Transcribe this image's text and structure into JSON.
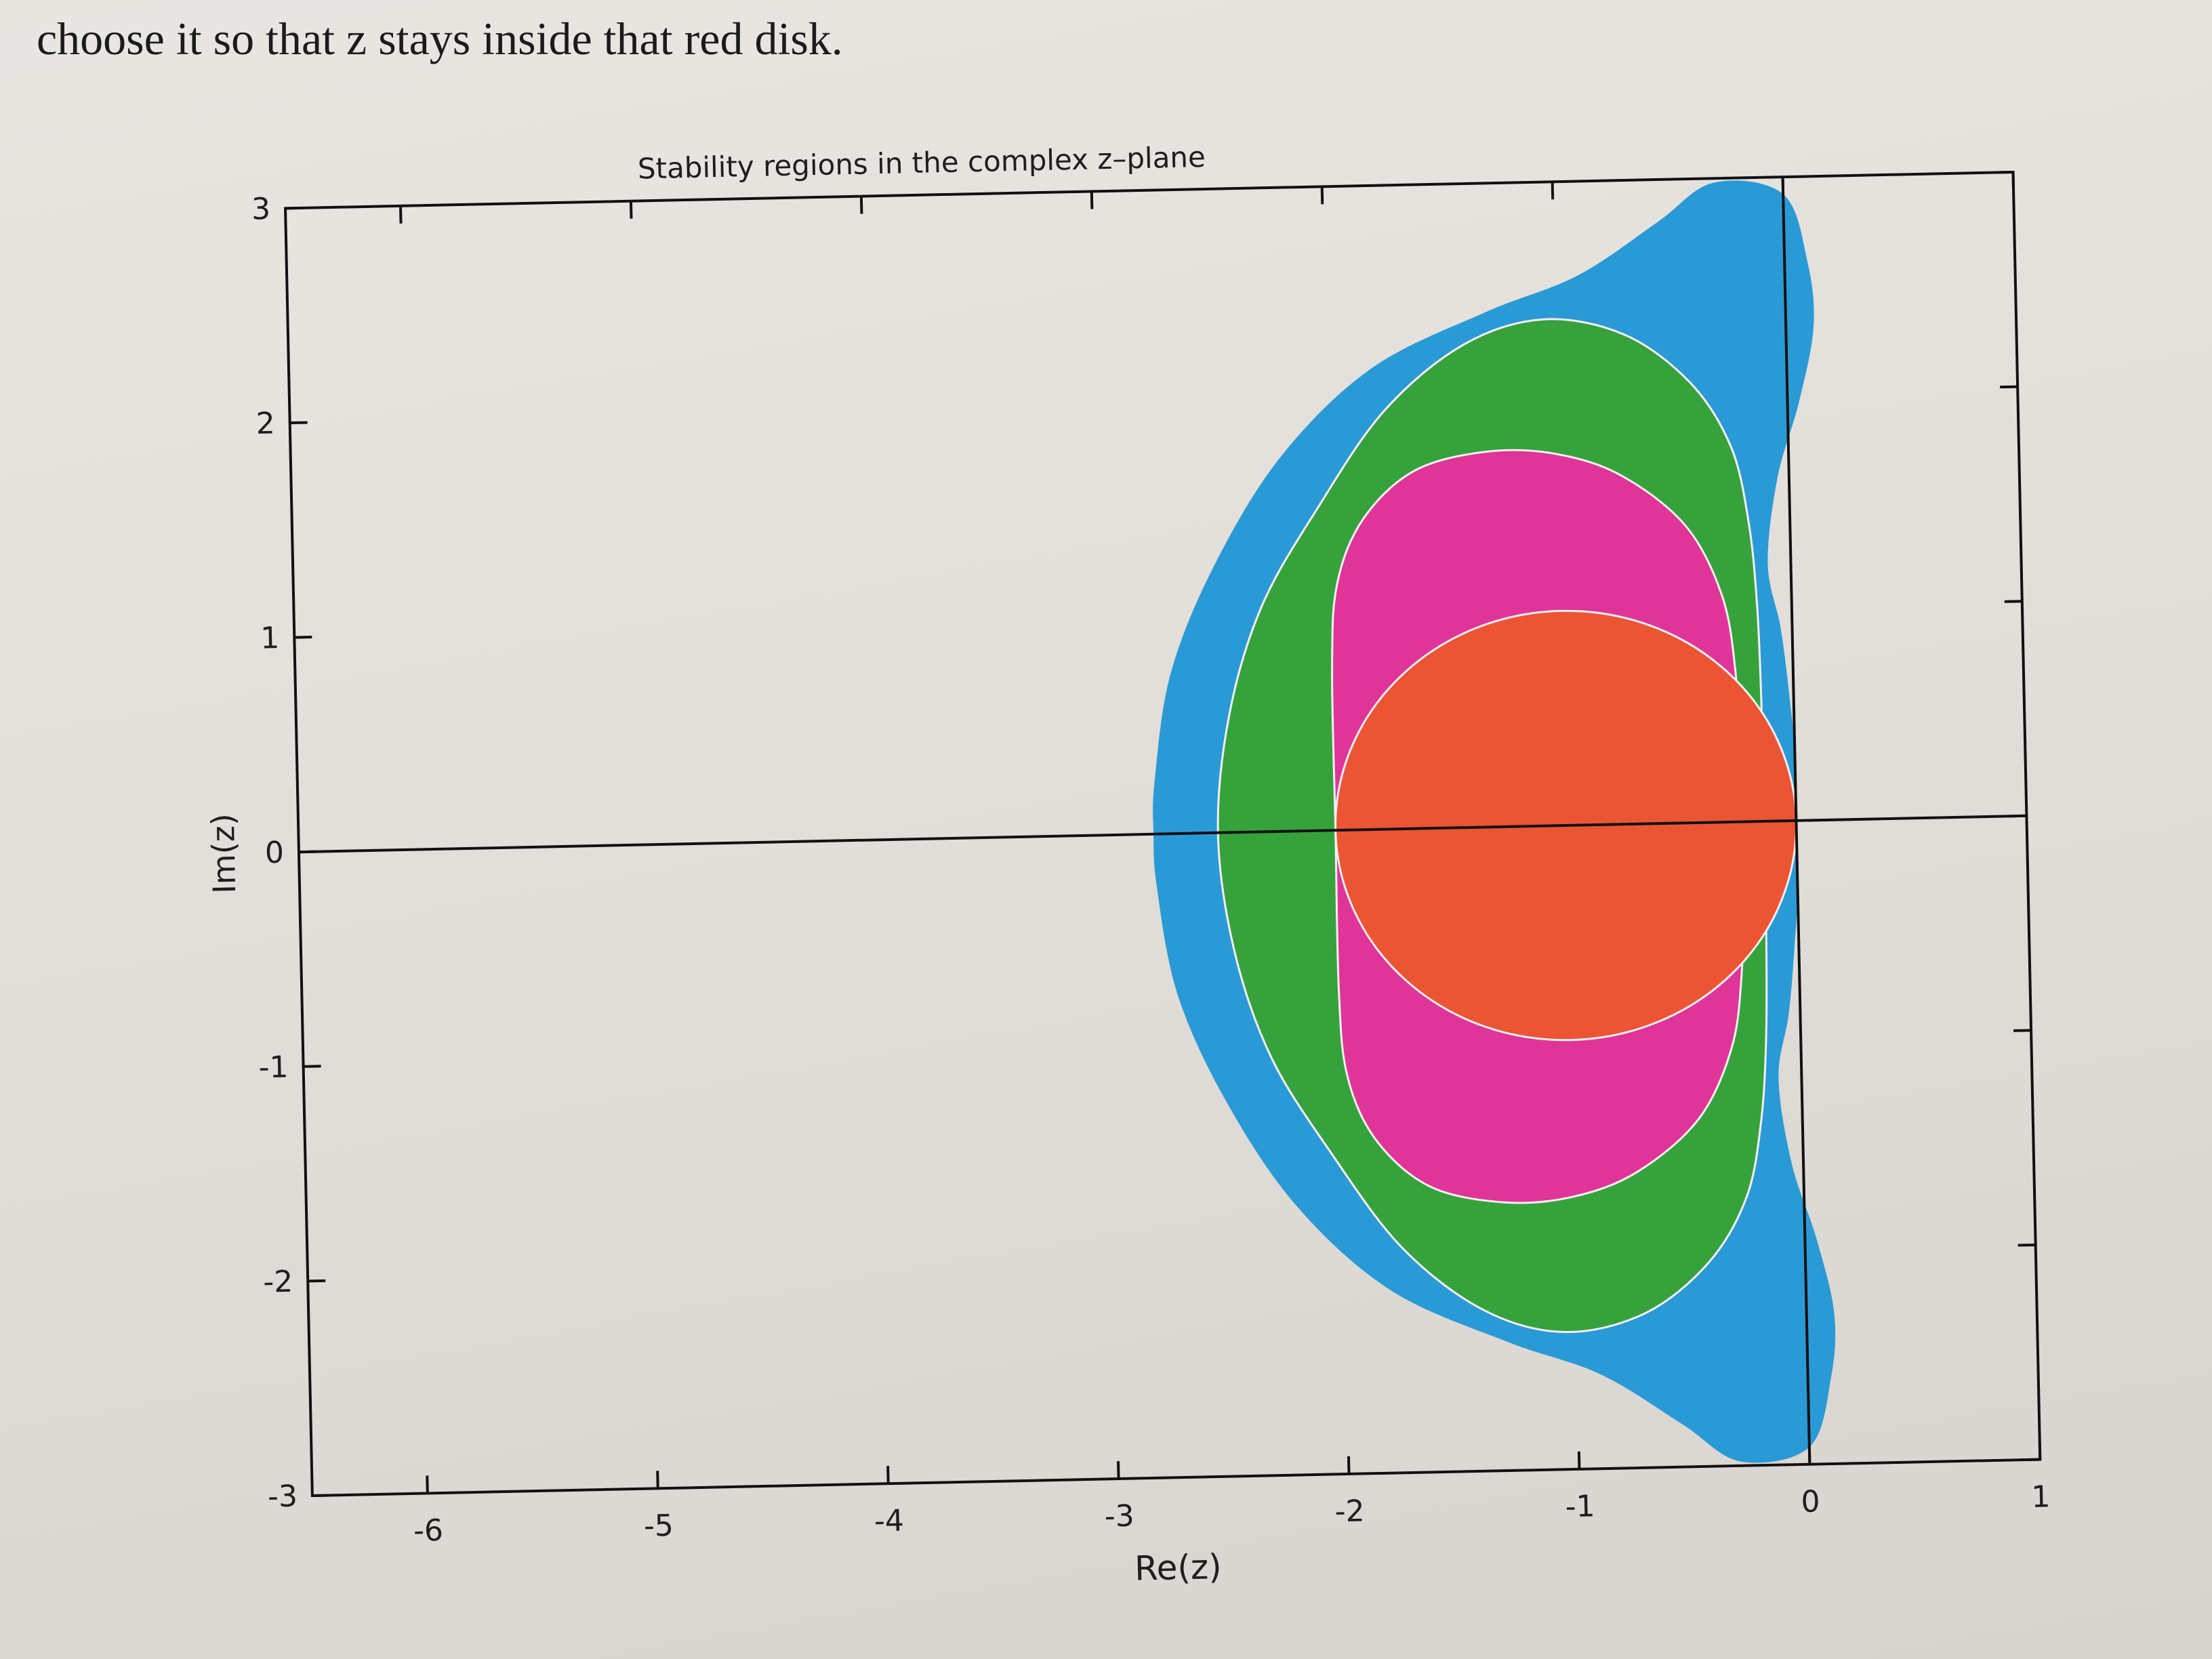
{
  "page_text": {
    "line": "choose it so that z stays inside that red disk."
  },
  "chart_data": {
    "type": "area",
    "title": "Stability regions in the complex z–plane",
    "xlabel": "Re(z)",
    "ylabel": "Im(z)",
    "xlim": [
      -6.5,
      1
    ],
    "ylim": [
      -3,
      3
    ],
    "xticks": [
      -6,
      -5,
      -4,
      -3,
      -2,
      -1,
      0,
      1
    ],
    "xtick_labels": [
      "-6",
      "-5",
      "-4",
      "-3",
      "-2",
      "-1",
      "0",
      "1"
    ],
    "yticks": [
      -3,
      -2,
      -1,
      0,
      1,
      2,
      3
    ],
    "ytick_labels": [
      "-3",
      "-2",
      "-1",
      "0",
      "1",
      "2",
      "3"
    ],
    "grid": false,
    "axes_lines": [
      "x=0",
      "y=0"
    ],
    "series": [
      {
        "color": "#2a9ad6",
        "shape": "region",
        "boundary": [
          [
            0.1,
            -2.6
          ],
          [
            0.0,
            -2.92
          ],
          [
            -0.3,
            -2.98
          ],
          [
            -0.55,
            -2.8
          ],
          [
            -0.9,
            -2.56
          ],
          [
            -1.3,
            -2.4
          ],
          [
            -1.8,
            -2.15
          ],
          [
            -2.2,
            -1.75
          ],
          [
            -2.5,
            -1.25
          ],
          [
            -2.7,
            -0.75
          ],
          [
            -2.78,
            -0.25
          ],
          [
            -2.79,
            0.0
          ],
          [
            -2.78,
            0.25
          ],
          [
            -2.7,
            0.75
          ],
          [
            -2.5,
            1.25
          ],
          [
            -2.2,
            1.75
          ],
          [
            -1.8,
            2.15
          ],
          [
            -1.3,
            2.4
          ],
          [
            -0.9,
            2.56
          ],
          [
            -0.55,
            2.8
          ],
          [
            -0.3,
            2.98
          ],
          [
            0.0,
            2.92
          ],
          [
            0.1,
            2.6
          ],
          [
            0.12,
            2.3
          ],
          [
            0.05,
            1.95
          ],
          [
            -0.05,
            1.6
          ],
          [
            -0.1,
            1.2
          ],
          [
            -0.05,
            0.9
          ],
          [
            -0.02,
            0.6
          ],
          [
            0.0,
            0.3
          ],
          [
            0.0,
            -0.3
          ],
          [
            -0.02,
            -0.6
          ],
          [
            -0.05,
            -0.9
          ],
          [
            -0.1,
            -1.2
          ],
          [
            -0.05,
            -1.6
          ],
          [
            0.05,
            -1.95
          ],
          [
            0.12,
            -2.3
          ]
        ]
      },
      {
        "color": "#36a23c",
        "shape": "region",
        "boundary": [
          [
            -2.51,
            0.0
          ],
          [
            -2.45,
            0.55
          ],
          [
            -2.3,
            1.05
          ],
          [
            -2.05,
            1.5
          ],
          [
            -1.75,
            1.95
          ],
          [
            -1.4,
            2.25
          ],
          [
            -1.05,
            2.36
          ],
          [
            -0.7,
            2.28
          ],
          [
            -0.42,
            2.05
          ],
          [
            -0.25,
            1.75
          ],
          [
            -0.18,
            1.4
          ],
          [
            -0.15,
            1.0
          ],
          [
            -0.14,
            0.5
          ],
          [
            -0.14,
            0.0
          ],
          [
            -0.14,
            -0.5
          ],
          [
            -0.15,
            -1.0
          ],
          [
            -0.18,
            -1.4
          ],
          [
            -0.25,
            -1.75
          ],
          [
            -0.42,
            -2.05
          ],
          [
            -0.7,
            -2.28
          ],
          [
            -1.05,
            -2.36
          ],
          [
            -1.4,
            -2.25
          ],
          [
            -1.75,
            -1.95
          ],
          [
            -2.05,
            -1.5
          ],
          [
            -2.3,
            -1.05
          ],
          [
            -2.45,
            -0.55
          ]
        ]
      },
      {
        "color": "#df3598",
        "shape": "region",
        "boundary": [
          [
            -2.0,
            0.0
          ],
          [
            -2.0,
            0.75
          ],
          [
            -1.97,
            1.15
          ],
          [
            -1.85,
            1.45
          ],
          [
            -1.62,
            1.67
          ],
          [
            -1.3,
            1.75
          ],
          [
            -1.0,
            1.73
          ],
          [
            -0.72,
            1.62
          ],
          [
            -0.45,
            1.38
          ],
          [
            -0.3,
            1.05
          ],
          [
            -0.25,
            0.7
          ],
          [
            -0.24,
            0.35
          ],
          [
            -0.24,
            0.0
          ],
          [
            -0.24,
            -0.35
          ],
          [
            -0.25,
            -0.7
          ],
          [
            -0.3,
            -1.05
          ],
          [
            -0.45,
            -1.38
          ],
          [
            -0.72,
            -1.62
          ],
          [
            -1.0,
            -1.73
          ],
          [
            -1.3,
            -1.75
          ],
          [
            -1.62,
            -1.67
          ],
          [
            -1.85,
            -1.45
          ],
          [
            -1.97,
            -1.15
          ],
          [
            -2.0,
            -0.75
          ]
        ]
      },
      {
        "color": "#ec5534",
        "shape": "circle",
        "center": [
          -1,
          0
        ],
        "radius": 1
      }
    ]
  }
}
